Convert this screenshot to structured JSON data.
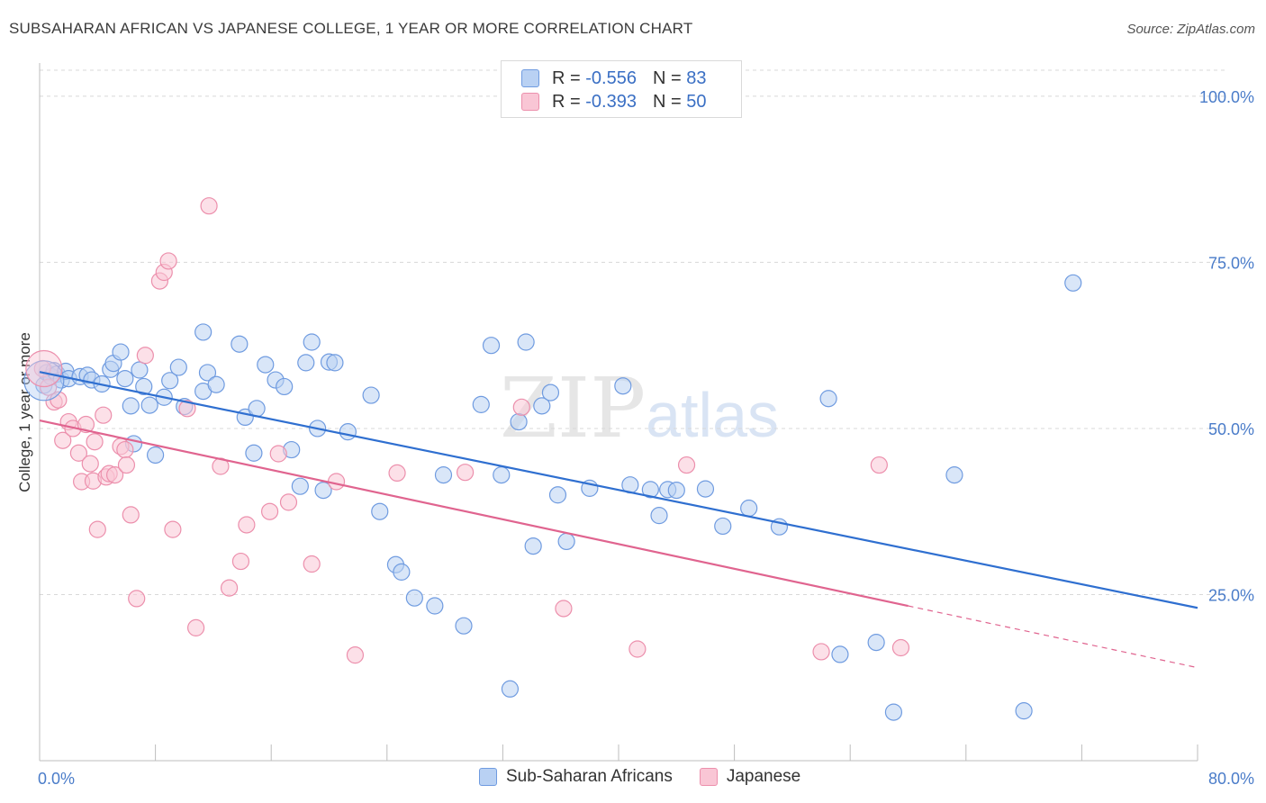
{
  "header": {
    "title": "SUBSAHARAN AFRICAN VS JAPANESE COLLEGE, 1 YEAR OR MORE CORRELATION CHART",
    "source": "Source: ZipAtlas.com"
  },
  "watermark": {
    "zip": "ZIP",
    "atlas": "atlas"
  },
  "legend_top": {
    "rows": [
      {
        "r_label": "R = ",
        "r_value": "-0.556",
        "n_label": "N = ",
        "n_value": "83"
      },
      {
        "r_label": "R = ",
        "r_value": "-0.393",
        "n_label": "N = ",
        "n_value": "50"
      }
    ]
  },
  "legend_bottom": {
    "items": [
      "Sub-Saharan Africans",
      "Japanese"
    ]
  },
  "colors": {
    "blue_fill": "#b9d1f3",
    "blue_stroke": "#6f9be0",
    "blue_line": "#2f6fd0",
    "pink_fill": "#f9c6d5",
    "pink_stroke": "#ec8fac",
    "pink_line": "#e0648f",
    "tick_text": "#4a7cc9",
    "grid": "#d8d8d8"
  },
  "chart_data": {
    "type": "scatter",
    "title": "SUBSAHARAN AFRICAN VS JAPANESE COLLEGE, 1 YEAR OR MORE CORRELATION CHART",
    "xlabel": "",
    "ylabel": "College, 1 year or more",
    "xlim": [
      0,
      80
    ],
    "ylim": [
      0,
      105
    ],
    "x_tick_labels": [
      "0.0%",
      "80.0%"
    ],
    "y_ticks": [
      25,
      50,
      75,
      100
    ],
    "y_tick_labels": [
      "25.0%",
      "50.0%",
      "75.0%",
      "100.0%"
    ],
    "grid": true,
    "legend": "top-center",
    "series": [
      {
        "name": "Sub-Saharan Africans",
        "color": "#6f9be0",
        "trend": {
          "x0": 0,
          "y0": 58.5,
          "x1": 80,
          "y1": 23.0
        },
        "points": [
          [
            0.3,
            56.5
          ],
          [
            0.5,
            58.4
          ],
          [
            0.8,
            57.8
          ],
          [
            1.0,
            58.7
          ],
          [
            1.2,
            58.2
          ],
          [
            1.5,
            57.3
          ],
          [
            1.8,
            58.6
          ],
          [
            2.0,
            57.5
          ],
          [
            2.8,
            57.8
          ],
          [
            3.3,
            58.0
          ],
          [
            3.6,
            57.3
          ],
          [
            4.3,
            56.7
          ],
          [
            4.9,
            58.9
          ],
          [
            5.1,
            59.8
          ],
          [
            5.6,
            61.5
          ],
          [
            5.9,
            57.5
          ],
          [
            6.3,
            53.4
          ],
          [
            6.5,
            47.7
          ],
          [
            6.9,
            58.8
          ],
          [
            7.2,
            56.3
          ],
          [
            7.6,
            53.5
          ],
          [
            8.0,
            46.0
          ],
          [
            8.6,
            54.7
          ],
          [
            9.0,
            57.2
          ],
          [
            9.6,
            59.2
          ],
          [
            10.0,
            53.3
          ],
          [
            11.3,
            64.5
          ],
          [
            11.6,
            58.4
          ],
          [
            11.3,
            55.6
          ],
          [
            12.2,
            56.6
          ],
          [
            13.8,
            62.7
          ],
          [
            14.2,
            51.7
          ],
          [
            14.8,
            46.3
          ],
          [
            15.0,
            53.0
          ],
          [
            15.6,
            59.6
          ],
          [
            16.3,
            57.3
          ],
          [
            16.9,
            56.3
          ],
          [
            17.4,
            46.8
          ],
          [
            18.0,
            41.3
          ],
          [
            18.4,
            59.9
          ],
          [
            18.8,
            63.0
          ],
          [
            19.2,
            50.0
          ],
          [
            19.6,
            40.7
          ],
          [
            20.0,
            60.0
          ],
          [
            20.4,
            59.9
          ],
          [
            21.3,
            49.5
          ],
          [
            22.9,
            55.0
          ],
          [
            23.5,
            37.5
          ],
          [
            24.6,
            29.5
          ],
          [
            25.0,
            28.4
          ],
          [
            25.9,
            24.5
          ],
          [
            27.3,
            23.3
          ],
          [
            27.9,
            43.0
          ],
          [
            29.3,
            20.3
          ],
          [
            30.5,
            53.6
          ],
          [
            31.2,
            62.5
          ],
          [
            31.9,
            43.0
          ],
          [
            32.5,
            10.8
          ],
          [
            33.1,
            51.0
          ],
          [
            33.6,
            63.0
          ],
          [
            34.1,
            32.3
          ],
          [
            34.7,
            53.4
          ],
          [
            35.3,
            55.4
          ],
          [
            35.8,
            40.0
          ],
          [
            36.4,
            33.0
          ],
          [
            38.0,
            41.0
          ],
          [
            40.3,
            56.4
          ],
          [
            40.8,
            41.5
          ],
          [
            42.2,
            40.8
          ],
          [
            42.8,
            36.9
          ],
          [
            43.4,
            40.8
          ],
          [
            44.0,
            40.7
          ],
          [
            46.0,
            40.9
          ],
          [
            47.2,
            35.3
          ],
          [
            49.0,
            38.0
          ],
          [
            51.1,
            35.2
          ],
          [
            54.5,
            54.5
          ],
          [
            55.3,
            16.0
          ],
          [
            57.8,
            17.8
          ],
          [
            59.0,
            7.3
          ],
          [
            63.2,
            43.0
          ],
          [
            68.0,
            7.5
          ],
          [
            71.4,
            71.9
          ]
        ]
      },
      {
        "name": "Japanese",
        "color": "#ec8fac",
        "trend": {
          "x0": 0,
          "y0": 51.2,
          "x1": 80,
          "y1": 14.0,
          "solid_until_x": 60
        },
        "points": [
          [
            0.2,
            59.0
          ],
          [
            0.6,
            56.2
          ],
          [
            1.0,
            54.0
          ],
          [
            1.3,
            54.3
          ],
          [
            1.6,
            48.2
          ],
          [
            2.0,
            51.0
          ],
          [
            2.3,
            50.0
          ],
          [
            2.7,
            46.3
          ],
          [
            2.9,
            42.0
          ],
          [
            3.2,
            50.6
          ],
          [
            3.5,
            44.7
          ],
          [
            3.7,
            42.1
          ],
          [
            3.8,
            48.0
          ],
          [
            4.0,
            34.8
          ],
          [
            4.4,
            52.0
          ],
          [
            4.6,
            42.7
          ],
          [
            4.8,
            43.2
          ],
          [
            5.2,
            43.0
          ],
          [
            5.6,
            47.3
          ],
          [
            5.9,
            46.8
          ],
          [
            6.0,
            44.5
          ],
          [
            6.3,
            37.0
          ],
          [
            6.7,
            24.4
          ],
          [
            7.3,
            61.0
          ],
          [
            8.3,
            72.2
          ],
          [
            8.6,
            73.5
          ],
          [
            8.9,
            75.2
          ],
          [
            9.2,
            34.8
          ],
          [
            10.2,
            53.0
          ],
          [
            10.8,
            20.0
          ],
          [
            11.7,
            83.5
          ],
          [
            12.5,
            44.3
          ],
          [
            13.1,
            26.0
          ],
          [
            13.9,
            30.0
          ],
          [
            14.3,
            35.5
          ],
          [
            15.9,
            37.5
          ],
          [
            16.5,
            46.2
          ],
          [
            17.2,
            38.9
          ],
          [
            18.8,
            29.6
          ],
          [
            20.5,
            42.0
          ],
          [
            21.8,
            15.9
          ],
          [
            24.7,
            43.3
          ],
          [
            29.4,
            43.4
          ],
          [
            33.3,
            53.2
          ],
          [
            36.2,
            22.9
          ],
          [
            41.3,
            16.8
          ],
          [
            44.7,
            44.5
          ],
          [
            54.0,
            16.4
          ],
          [
            58.0,
            44.5
          ],
          [
            59.5,
            17.0
          ]
        ]
      }
    ]
  }
}
